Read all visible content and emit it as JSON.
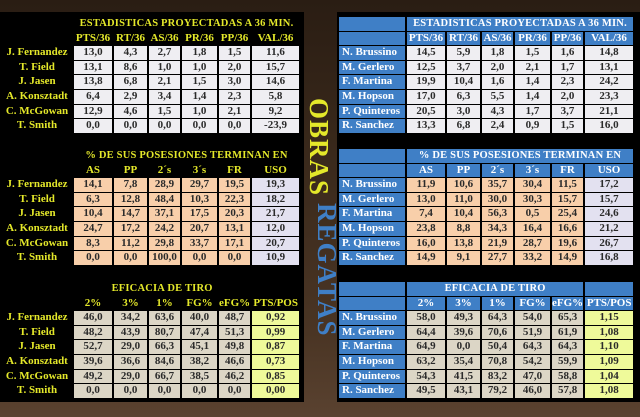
{
  "sides": [
    {
      "team": "OBRAS",
      "team_color": "#e4e82a",
      "tables": [
        {
          "title": "ESTADISTICAS PROYECTADAS A 36 MIN.",
          "headers": [
            "PTS/36",
            "RT/36",
            "AS/36",
            "PR/36",
            "PP/36",
            "VAL/36"
          ],
          "rows": [
            {
              "name": "J. Fernandez",
              "values": [
                "13,0",
                "4,3",
                "2,7",
                "1,8",
                "1,5",
                "11,6"
              ]
            },
            {
              "name": "T. Field",
              "values": [
                "13,1",
                "8,6",
                "1,0",
                "1,0",
                "2,0",
                "15,7"
              ]
            },
            {
              "name": "J. Jasen",
              "values": [
                "13,8",
                "6,8",
                "2,1",
                "1,5",
                "3,0",
                "14,6"
              ]
            },
            {
              "name": "A. Konsztadt",
              "values": [
                "6,4",
                "2,9",
                "3,4",
                "1,4",
                "2,3",
                "5,8"
              ]
            },
            {
              "name": "C. McGowan",
              "values": [
                "12,9",
                "4,6",
                "1,5",
                "1,0",
                "2,1",
                "9,2"
              ]
            },
            {
              "name": "T. Smith",
              "values": [
                "0,0",
                "0,0",
                "0,0",
                "0,0",
                "0,0",
                "-23,9"
              ]
            }
          ]
        },
        {
          "title": "% DE SUS POSESIONES TERMINAN EN",
          "headers": [
            "AS",
            "PP",
            "2´s",
            "3´s",
            "FR",
            "USO"
          ],
          "rows": [
            {
              "name": "J. Fernandez",
              "values": [
                "14,1",
                "7,8",
                "28,9",
                "29,7",
                "19,5",
                "19,3"
              ]
            },
            {
              "name": "T. Field",
              "values": [
                "6,3",
                "12,8",
                "48,4",
                "10,3",
                "22,3",
                "18,2"
              ]
            },
            {
              "name": "J. Jasen",
              "values": [
                "10,4",
                "14,7",
                "37,1",
                "17,5",
                "20,3",
                "21,7"
              ]
            },
            {
              "name": "A. Konsztadt",
              "values": [
                "24,7",
                "17,2",
                "24,2",
                "20,7",
                "13,1",
                "12,0"
              ]
            },
            {
              "name": "C. McGowan",
              "values": [
                "8,3",
                "11,2",
                "29,8",
                "33,7",
                "17,1",
                "20,7"
              ]
            },
            {
              "name": "T. Smith",
              "values": [
                "0,0",
                "0,0",
                "100,0",
                "0,0",
                "0,0",
                "10,9"
              ]
            }
          ]
        },
        {
          "title": "EFICACIA DE TIRO",
          "headers": [
            "2%",
            "3%",
            "1%",
            "FG%",
            "eFG%",
            "PTS/POS"
          ],
          "rows": [
            {
              "name": "J. Fernandez",
              "values": [
                "46,0",
                "34,2",
                "63,6",
                "40,0",
                "48,7",
                "0,92"
              ]
            },
            {
              "name": "T. Field",
              "values": [
                "48,2",
                "43,9",
                "80,7",
                "47,4",
                "51,3",
                "0,99"
              ]
            },
            {
              "name": "J. Jasen",
              "values": [
                "52,7",
                "29,0",
                "66,3",
                "45,1",
                "49,8",
                "0,87"
              ]
            },
            {
              "name": "A. Konsztadt",
              "values": [
                "39,6",
                "36,6",
                "84,6",
                "38,2",
                "46,6",
                "0,73"
              ]
            },
            {
              "name": "C. McGowan",
              "values": [
                "49,2",
                "29,0",
                "66,7",
                "38,5",
                "46,2",
                "0,85"
              ]
            },
            {
              "name": "T. Smith",
              "values": [
                "0,0",
                "0,0",
                "0,0",
                "0,0",
                "0,0",
                "0,00"
              ]
            }
          ]
        }
      ]
    },
    {
      "team": "REGATAS",
      "team_color": "#3f7fc6",
      "tables": [
        {
          "title": "ESTADISTICAS PROYECTADAS A 36 MIN.",
          "headers": [
            "PTS/36",
            "RT/36",
            "AS/36",
            "PR/36",
            "PP/36",
            "VAL/36"
          ],
          "rows": [
            {
              "name": "N. Brussino",
              "values": [
                "14,5",
                "5,9",
                "1,8",
                "1,5",
                "1,6",
                "14,8"
              ]
            },
            {
              "name": "M. Gerlero",
              "values": [
                "12,5",
                "3,7",
                "2,0",
                "2,1",
                "1,7",
                "13,1"
              ]
            },
            {
              "name": "F. Martina",
              "values": [
                "19,9",
                "10,4",
                "1,6",
                "1,4",
                "2,3",
                "24,2"
              ]
            },
            {
              "name": "M. Hopson",
              "values": [
                "17,0",
                "6,3",
                "5,5",
                "1,4",
                "2,0",
                "23,3"
              ]
            },
            {
              "name": "P. Quinteros",
              "values": [
                "20,5",
                "3,0",
                "4,3",
                "1,7",
                "3,7",
                "21,1"
              ]
            },
            {
              "name": "R. Sanchez",
              "values": [
                "13,3",
                "6,8",
                "2,4",
                "0,9",
                "1,5",
                "16,0"
              ]
            }
          ]
        },
        {
          "title": "% DE SUS POSESIONES TERMINAN EN",
          "headers": [
            "AS",
            "PP",
            "2´s",
            "3´s",
            "FR",
            "USO"
          ],
          "rows": [
            {
              "name": "N. Brussino",
              "values": [
                "11,9",
                "10,6",
                "35,7",
                "30,4",
                "11,5",
                "17,2"
              ]
            },
            {
              "name": "M. Gerlero",
              "values": [
                "13,0",
                "11,0",
                "30,0",
                "30,3",
                "15,7",
                "15,7"
              ]
            },
            {
              "name": "F. Martina",
              "values": [
                "7,4",
                "10,4",
                "56,3",
                "0,5",
                "25,4",
                "24,6"
              ]
            },
            {
              "name": "M. Hopson",
              "values": [
                "23,8",
                "8,8",
                "34,3",
                "16,4",
                "16,6",
                "21,2"
              ]
            },
            {
              "name": "P. Quinteros",
              "values": [
                "16,0",
                "13,8",
                "21,9",
                "28,7",
                "19,6",
                "26,7"
              ]
            },
            {
              "name": "R. Sanchez",
              "values": [
                "14,9",
                "9,1",
                "27,7",
                "33,2",
                "14,9",
                "16,8"
              ]
            }
          ]
        },
        {
          "title": "EFICACIA DE TIRO",
          "headers": [
            "2%",
            "3%",
            "1%",
            "FG%",
            "eFG%",
            "PTS/POS"
          ],
          "rows": [
            {
              "name": "N. Brussino",
              "values": [
                "58,0",
                "49,3",
                "64,3",
                "54,0",
                "65,3",
                "1,15"
              ]
            },
            {
              "name": "M. Gerlero",
              "values": [
                "64,4",
                "39,6",
                "70,6",
                "51,9",
                "61,9",
                "1,08"
              ]
            },
            {
              "name": "F. Martina",
              "values": [
                "64,9",
                "0,0",
                "50,4",
                "64,3",
                "64,3",
                "1,10"
              ]
            },
            {
              "name": "M. Hopson",
              "values": [
                "63,2",
                "35,4",
                "70,8",
                "54,2",
                "59,9",
                "1,09"
              ]
            },
            {
              "name": "P. Quinteros",
              "values": [
                "54,3",
                "41,5",
                "83,2",
                "47,0",
                "58,8",
                "1,04"
              ]
            },
            {
              "name": "R. Sanchez",
              "values": [
                "49,5",
                "43,1",
                "79,2",
                "46,0",
                "57,8",
                "1,08"
              ]
            }
          ]
        }
      ]
    }
  ]
}
